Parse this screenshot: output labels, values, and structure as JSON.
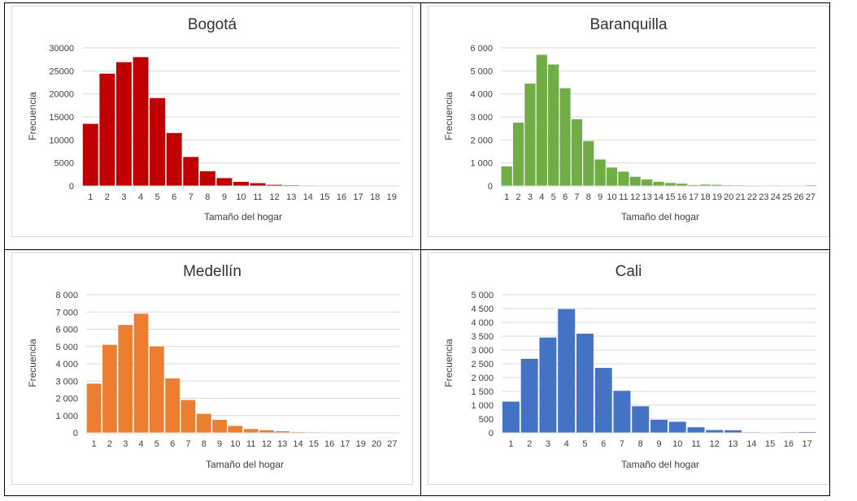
{
  "chart_data": [
    {
      "type": "bar",
      "title": "Bogotá",
      "xlabel": "Tamaño del hogar",
      "ylabel": "Frecuencia",
      "color": "#c00000",
      "ylim": [
        0,
        30000
      ],
      "yticks": [
        "0",
        "5000",
        "10000",
        "15000",
        "20000",
        "25000",
        "30000"
      ],
      "categories": [
        "1",
        "2",
        "3",
        "4",
        "5",
        "6",
        "7",
        "8",
        "9",
        "10",
        "11",
        "12",
        "13",
        "14",
        "15",
        "16",
        "17",
        "18",
        "19"
      ],
      "values": [
        13500,
        24400,
        26900,
        28000,
        19100,
        11500,
        6300,
        3200,
        1700,
        900,
        600,
        250,
        150,
        100,
        60,
        40,
        30,
        20,
        15
      ]
    },
    {
      "type": "bar",
      "title": "Baranquilla",
      "xlabel": "Tamaño del hogar",
      "ylabel": "Frecuencia",
      "color": "#70ad47",
      "ylim": [
        0,
        6000
      ],
      "yticks": [
        "0",
        "1 000",
        "2 000",
        "3 000",
        "4 000",
        "5 000",
        "6 000"
      ],
      "categories": [
        "1",
        "2",
        "3",
        "4",
        "5",
        "6",
        "7",
        "8",
        "9",
        "10",
        "11",
        "12",
        "13",
        "14",
        "15",
        "16",
        "17",
        "18",
        "19",
        "20",
        "21",
        "22",
        "23",
        "24",
        "25",
        "26",
        "27"
      ],
      "values": [
        850,
        2750,
        4450,
        5700,
        5280,
        4250,
        2900,
        1950,
        1150,
        800,
        620,
        400,
        280,
        180,
        130,
        100,
        40,
        60,
        50,
        30,
        25,
        20,
        15,
        20,
        15,
        10,
        30
      ]
    },
    {
      "type": "bar",
      "title": "Medellín",
      "xlabel": "Tamaño del hogar",
      "ylabel": "Frecuencia",
      "color": "#ed7d31",
      "ylim": [
        0,
        8000
      ],
      "yticks": [
        "0",
        "1 000",
        "2 000",
        "3 000",
        "4 000",
        "5 000",
        "6 000",
        "7 000",
        "8 000"
      ],
      "categories": [
        "1",
        "2",
        "3",
        "4",
        "5",
        "6",
        "7",
        "8",
        "9",
        "10",
        "11",
        "12",
        "13",
        "14",
        "15",
        "16",
        "17",
        "19",
        "20",
        "27"
      ],
      "values": [
        2850,
        5100,
        6250,
        6900,
        5000,
        3150,
        1900,
        1100,
        750,
        400,
        220,
        150,
        90,
        40,
        30,
        15,
        25,
        10,
        10,
        15
      ]
    },
    {
      "type": "bar",
      "title": "Cali",
      "xlabel": "Tamaño del hogar",
      "ylabel": "Frecuencia",
      "color": "#4472c4",
      "ylim": [
        0,
        5000
      ],
      "yticks": [
        "0",
        "500",
        "1 000",
        "1 500",
        "2 000",
        "2 500",
        "3 000",
        "3 500",
        "4 000",
        "4 500",
        "5 000"
      ],
      "categories": [
        "1",
        "2",
        "3",
        "4",
        "5",
        "6",
        "7",
        "8",
        "9",
        "10",
        "11",
        "12",
        "13",
        "14",
        "15",
        "16",
        "17"
      ],
      "values": [
        1130,
        2680,
        3450,
        4480,
        3590,
        2350,
        1520,
        960,
        470,
        400,
        200,
        100,
        90,
        20,
        10,
        20,
        30
      ]
    }
  ]
}
